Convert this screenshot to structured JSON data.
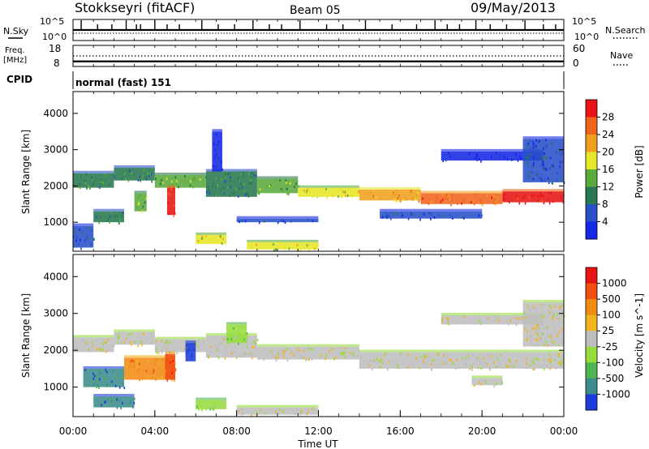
{
  "header": {
    "station": "Stokkseyri (fitACF)",
    "beam": "Beam 05",
    "date": "09/May/2013"
  },
  "side_labels": {
    "nsky": "N.Sky",
    "nsearch": "N.Search",
    "freq": "Freq.",
    "freq_unit": "[MHz]",
    "nave": "Nave",
    "cpid": "CPID"
  },
  "cpid_text": "normal (fast) 151",
  "chart_data": [
    {
      "type": "line",
      "name": "noise-panel",
      "x_range": [
        0,
        24
      ],
      "left_axis_ticks": [
        "10^5",
        "10^0"
      ],
      "right_axis_ticks": [
        "10^5",
        "10^0"
      ],
      "series_labels": [
        "N.Sky",
        "N.Search"
      ],
      "spike_hours": [
        0.4,
        1.2,
        1.9,
        2.6,
        3.1,
        3.3,
        4.0,
        4.6,
        5.2,
        6.3,
        7.1,
        7.9,
        8.8,
        9.6,
        10.2,
        11.1,
        12.4,
        13.2,
        14.3,
        15.6,
        16.8,
        17.7,
        18.3,
        18.9,
        19.7,
        20.4,
        21.2,
        22.1,
        23.0,
        23.6
      ]
    },
    {
      "type": "line",
      "name": "freq-nave-panel",
      "x_range": [
        0,
        24
      ],
      "left_axis_ticks": [
        "18",
        "8"
      ],
      "right_axis_ticks": [
        "60",
        "0"
      ],
      "freq_ylim": [
        8,
        18
      ],
      "nave_ylim": [
        0,
        60
      ],
      "freq_mhz": 10.4,
      "nave": 30
    },
    {
      "type": "heatmap",
      "name": "power",
      "xlabel": "",
      "ylabel": "Slant Range [km]",
      "ylim": [
        200,
        4600
      ],
      "yticks": [
        1000,
        2000,
        3000,
        4000
      ],
      "colorbar_label": "Power [dB]",
      "colorbar_ticks": [
        4,
        8,
        12,
        16,
        20,
        24,
        28
      ],
      "colorbar_colors": [
        "#1428e6",
        "#2850c8",
        "#287850",
        "#5aaa3c",
        "#e6e628",
        "#f0a01e",
        "#f0641e",
        "#e61414"
      ],
      "bands": [
        {
          "x": [
            0.0,
            2.0
          ],
          "y": [
            1950,
            2350
          ],
          "level": 2
        },
        {
          "x": [
            2.0,
            4.0
          ],
          "y": [
            2150,
            2500
          ],
          "level": 2
        },
        {
          "x": [
            4.0,
            6.5
          ],
          "y": [
            1950,
            2300
          ],
          "level": 3
        },
        {
          "x": [
            6.5,
            9.0
          ],
          "y": [
            1700,
            2400
          ],
          "level": 2
        },
        {
          "x": [
            9.0,
            11.0
          ],
          "y": [
            1800,
            2200
          ],
          "level": 3
        },
        {
          "x": [
            11.0,
            14.0
          ],
          "y": [
            1700,
            1950
          ],
          "level": 4
        },
        {
          "x": [
            14.0,
            17.0
          ],
          "y": [
            1600,
            1900
          ],
          "level": 5
        },
        {
          "x": [
            17.0,
            21.0
          ],
          "y": [
            1500,
            1800
          ],
          "level": 6
        },
        {
          "x": [
            21.0,
            24.0
          ],
          "y": [
            1550,
            1850
          ],
          "level": 7
        },
        {
          "x": [
            4.6,
            5.0
          ],
          "y": [
            1200,
            1950
          ],
          "level": 7
        },
        {
          "x": [
            3.0,
            3.6
          ],
          "y": [
            1300,
            1800
          ],
          "level": 3
        },
        {
          "x": [
            1.0,
            2.5
          ],
          "y": [
            1000,
            1300
          ],
          "level": 2
        },
        {
          "x": [
            6.0,
            7.5
          ],
          "y": [
            400,
            650
          ],
          "level": 4
        },
        {
          "x": [
            8.0,
            12.0
          ],
          "y": [
            1000,
            1100
          ],
          "level": 1
        },
        {
          "x": [
            15.0,
            20.0
          ],
          "y": [
            1100,
            1300
          ],
          "level": 1
        },
        {
          "x": [
            18.0,
            23.0
          ],
          "y": [
            2700,
            2950
          ],
          "level": 0
        },
        {
          "x": [
            6.8,
            7.3
          ],
          "y": [
            2400,
            3500
          ],
          "level": 0
        },
        {
          "x": [
            22.0,
            24.0
          ],
          "y": [
            2100,
            3300
          ],
          "level": 1
        },
        {
          "x": [
            0.0,
            1.0
          ],
          "y": [
            300,
            900
          ],
          "level": 1
        },
        {
          "x": [
            8.5,
            12.0
          ],
          "y": [
            250,
            450
          ],
          "level": 4
        }
      ]
    },
    {
      "type": "heatmap",
      "name": "velocity",
      "xlabel": "Time UT",
      "ylabel": "Slant Range [km]",
      "ylim": [
        200,
        4600
      ],
      "yticks": [
        1000,
        2000,
        3000,
        4000
      ],
      "xticks": [
        "00:00",
        "04:00",
        "08:00",
        "12:00",
        "16:00",
        "20:00",
        "00:00"
      ],
      "colorbar_label": "Velocity [m s^-1]",
      "colorbar_ticks": [
        1000,
        500,
        100,
        25,
        -25,
        -100,
        -500,
        -1000
      ],
      "colorbar_colors": [
        "#1e3cdc",
        "#3c8c8c",
        "#50b450",
        "#96dc3c",
        "#bebebe",
        "#f0b41e",
        "#f08c14",
        "#f05014",
        "#e61414"
      ],
      "bands": [
        {
          "x": [
            0.0,
            2.0
          ],
          "y": [
            1950,
            2350
          ],
          "level": 4
        },
        {
          "x": [
            2.0,
            4.0
          ],
          "y": [
            2150,
            2500
          ],
          "level": 4
        },
        {
          "x": [
            4.0,
            6.5
          ],
          "y": [
            1950,
            2300
          ],
          "level": 4
        },
        {
          "x": [
            6.5,
            9.0
          ],
          "y": [
            1800,
            2400
          ],
          "level": 4
        },
        {
          "x": [
            9.0,
            14.0
          ],
          "y": [
            1750,
            2100
          ],
          "level": 4
        },
        {
          "x": [
            14.0,
            24.0
          ],
          "y": [
            1500,
            1950
          ],
          "level": 4
        },
        {
          "x": [
            2.5,
            5.0
          ],
          "y": [
            1200,
            1800
          ],
          "level": 6
        },
        {
          "x": [
            4.5,
            5.0
          ],
          "y": [
            1200,
            1900
          ],
          "level": 7
        },
        {
          "x": [
            0.5,
            2.5
          ],
          "y": [
            1000,
            1500
          ],
          "level": 1
        },
        {
          "x": [
            1.0,
            3.0
          ],
          "y": [
            450,
            750
          ],
          "level": 1
        },
        {
          "x": [
            6.0,
            7.5
          ],
          "y": [
            400,
            650
          ],
          "level": 3
        },
        {
          "x": [
            8.0,
            12.0
          ],
          "y": [
            250,
            450
          ],
          "level": 4
        },
        {
          "x": [
            18.0,
            23.0
          ],
          "y": [
            2700,
            2950
          ],
          "level": 4
        },
        {
          "x": [
            22.0,
            24.0
          ],
          "y": [
            2100,
            3300
          ],
          "level": 4
        },
        {
          "x": [
            5.5,
            6.0
          ],
          "y": [
            1700,
            2200
          ],
          "level": 0
        },
        {
          "x": [
            7.5,
            8.5
          ],
          "y": [
            2200,
            2700
          ],
          "level": 3
        },
        {
          "x": [
            19.5,
            21.0
          ],
          "y": [
            1050,
            1250
          ],
          "level": 4
        }
      ]
    }
  ]
}
